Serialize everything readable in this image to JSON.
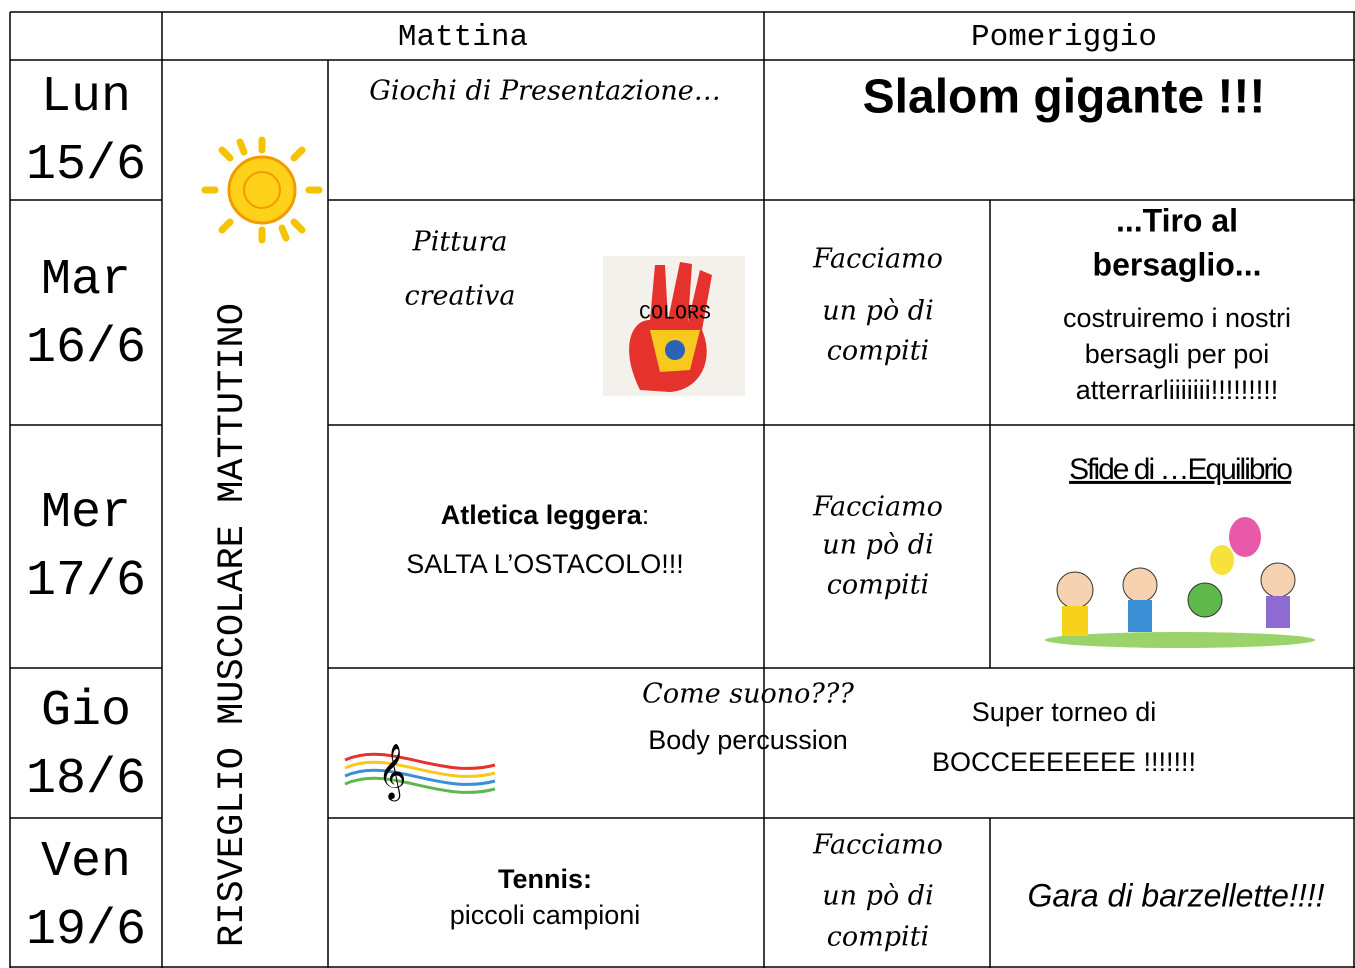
{
  "header": {
    "morning": "Mattina",
    "afternoon": "Pomeriggio"
  },
  "warmup": "RISVEGLIO MUSCOLARE MATTUTINO",
  "days": [
    {
      "day": "Lun",
      "date": "15/6",
      "morning": {
        "text": "Giochi di Presentazione…"
      },
      "afternoon": {
        "text": "Slalom gigante !!!"
      }
    },
    {
      "day": "Mar",
      "date": "16/6",
      "morning": {
        "lines": [
          "Pittura",
          "creativa"
        ],
        "image_text": "COLORS"
      },
      "homework": [
        "Facciamo",
        "un pò di",
        "compiti"
      ],
      "afternoon": {
        "title": [
          "...Tiro al",
          "bersaglio..."
        ],
        "lines": [
          "costruiremo i nostri",
          "bersagli per poi",
          "atterrarliiiiiii!!!!!!!!!"
        ]
      }
    },
    {
      "day": "Mer",
      "date": "17/6",
      "morning": {
        "bold": "Atletica leggera",
        "after": ":",
        "line": "SALTA L’OSTACOLO!!!"
      },
      "homework": [
        "Facciamo",
        "un pò di",
        "compiti"
      ],
      "afternoon": {
        "title": "Sfide di …Equilibrio"
      }
    },
    {
      "day": "Gio",
      "date": "18/6",
      "morning": {
        "title": "Come suono???",
        "line": "Body percussion"
      },
      "afternoon": {
        "lines": [
          "Super torneo di",
          "BOCCEEEEEEE !!!!!!!"
        ]
      }
    },
    {
      "day": "Ven",
      "date": "19/6",
      "morning": {
        "bold": "Tennis:",
        "line": "piccoli campioni"
      },
      "homework": [
        "Facciamo",
        "un pò di",
        "compiti"
      ],
      "afternoon": {
        "text": "Gara di barzellette!!!!"
      }
    }
  ]
}
